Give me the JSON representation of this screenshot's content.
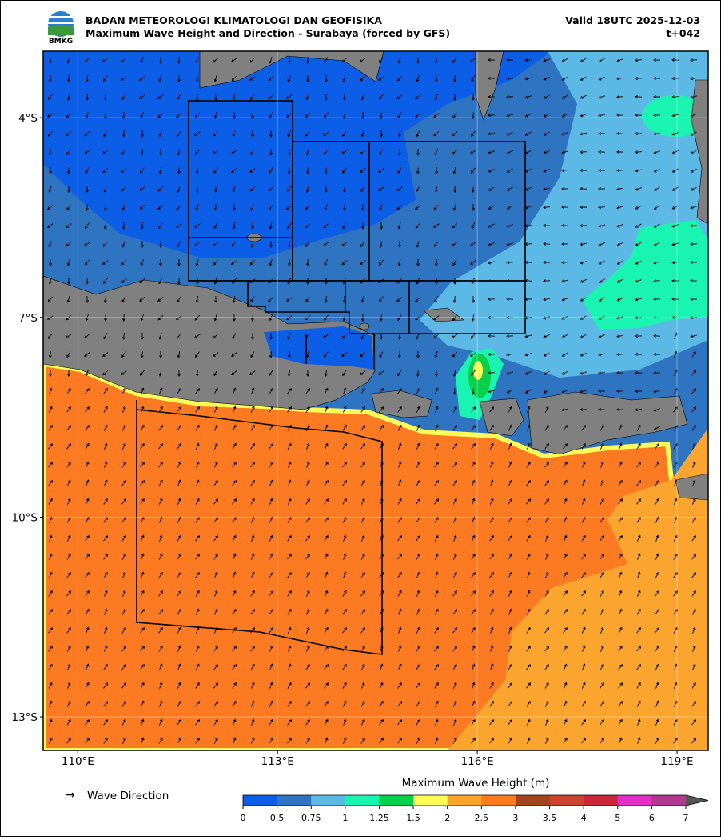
{
  "header": {
    "agency": "BADAN METEOROLOGI KLIMATOLOGI DAN GEOFISIKA",
    "title": "Maximum Wave Height and Direction - Surabaya (forced by GFS)",
    "valid": "Valid 18UTC 2025-12-03",
    "lead": "t+042",
    "logo_text": "BMKG"
  },
  "map": {
    "lon_ticks": [
      {
        "value": 110,
        "label": "110°E"
      },
      {
        "value": 113,
        "label": "113°E"
      },
      {
        "value": 116,
        "label": "116°E"
      },
      {
        "value": 119,
        "label": "119°E"
      }
    ],
    "lat_ticks": [
      {
        "value": -4,
        "label": "4°S"
      },
      {
        "value": -7,
        "label": "7°S"
      },
      {
        "value": -10,
        "label": "10°S"
      },
      {
        "value": -13,
        "label": "13°S"
      }
    ],
    "grid": true
  },
  "legend": {
    "arrow": "→",
    "label": "Wave Direction"
  },
  "colorbar": {
    "label": "Maximum Wave Height (m)",
    "ticks": [
      0,
      0.5,
      0.75,
      1,
      1.25,
      1.5,
      2,
      2.5,
      3,
      3.5,
      4,
      5,
      6,
      7
    ],
    "colors": [
      "#0d5ee6",
      "#2f74c0",
      "#5cb9e6",
      "#19f5b0",
      "#05d04a",
      "#fbfb5a",
      "#fba42e",
      "#fb7a22",
      "#a0461a",
      "#c8442c",
      "#c8283a",
      "#e030c8",
      "#b03890"
    ],
    "over_color": "#555555"
  }
}
